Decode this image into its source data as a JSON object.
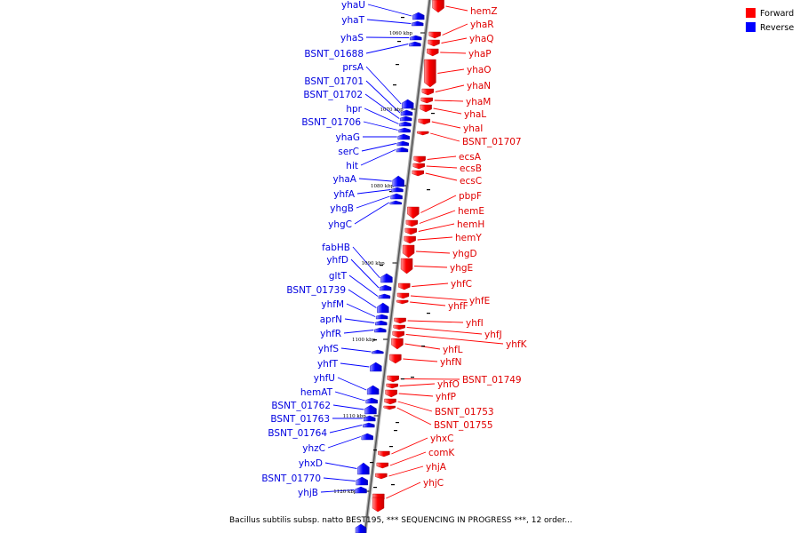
{
  "legend": {
    "forward_label": "Forward",
    "reverse_label": "Reverse",
    "forward_color": "#ff0000",
    "reverse_color": "#0000ff"
  },
  "caption": "Bacillus subtilis subsp. natto BEST195, *** SEQUENCING IN PROGRESS ***, 12 order...",
  "ticks": [
    "1060 kbp",
    "1070 kbp",
    "1080 kbp",
    "1090 kbp",
    "1100 kbp",
    "1110 kbp",
    "1120 kbp"
  ],
  "forward_genes": [
    "hemZ",
    "yhaR",
    "yhaQ",
    "yhaP",
    "yhaO",
    "yhaN",
    "yhaM",
    "yhaL",
    "yhaI",
    "BSNT_01707",
    "ecsA",
    "ecsB",
    "ecsC",
    "pbpF",
    "hemE",
    "hemH",
    "hemY",
    "yhgD",
    "yhgE",
    "yhfC",
    "yhfE",
    "yhfF",
    "yhfI",
    "yhfJ",
    "yhfK",
    "yhfL",
    "yhfN",
    "BSNT_01749",
    "yhfO",
    "yhfP",
    "BSNT_01753",
    "BSNT_01755",
    "yhxC",
    "comK",
    "yhjA",
    "yhjC"
  ],
  "reverse_genes": [
    "yhaU",
    "yhaT",
    "yhaS",
    "BSNT_01688",
    "prsA",
    "BSNT_01701",
    "BSNT_01702",
    "hpr",
    "BSNT_01706",
    "yhaG",
    "serC",
    "hit",
    "yhaA",
    "yhfA",
    "yhgB",
    "yhgC",
    "fabHB",
    "yhfD",
    "gltT",
    "BSNT_01739",
    "yhfM",
    "aprN",
    "yhfR",
    "yhfS",
    "yhfT",
    "yhfU",
    "hemAT",
    "BSNT_01762",
    "BSNT_01763",
    "BSNT_01764",
    "yhzC",
    "yhxD",
    "BSNT_01770",
    "yhjB"
  ]
}
